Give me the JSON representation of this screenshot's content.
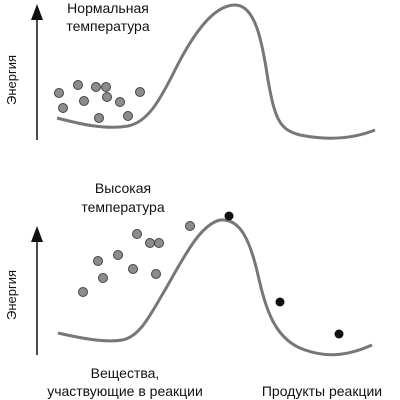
{
  "top_panel": {
    "title_line1": "Нормальная",
    "title_line2": "температура",
    "axis_label": "Энергия"
  },
  "bottom_panel": {
    "title_line1": "Высокая",
    "title_line2": "температура",
    "axis_label": "Энергия"
  },
  "captions": {
    "reactants_line1": "Вещества,",
    "reactants_line2": "участвующие в реакции",
    "products": "Продукты реакции"
  },
  "colors": {
    "curve": "#777777",
    "axis": "#111111",
    "reactant_particle_fill": "#8c8c8c",
    "reactant_particle_stroke": "#444444",
    "product_particle_fill": "#111111"
  }
}
